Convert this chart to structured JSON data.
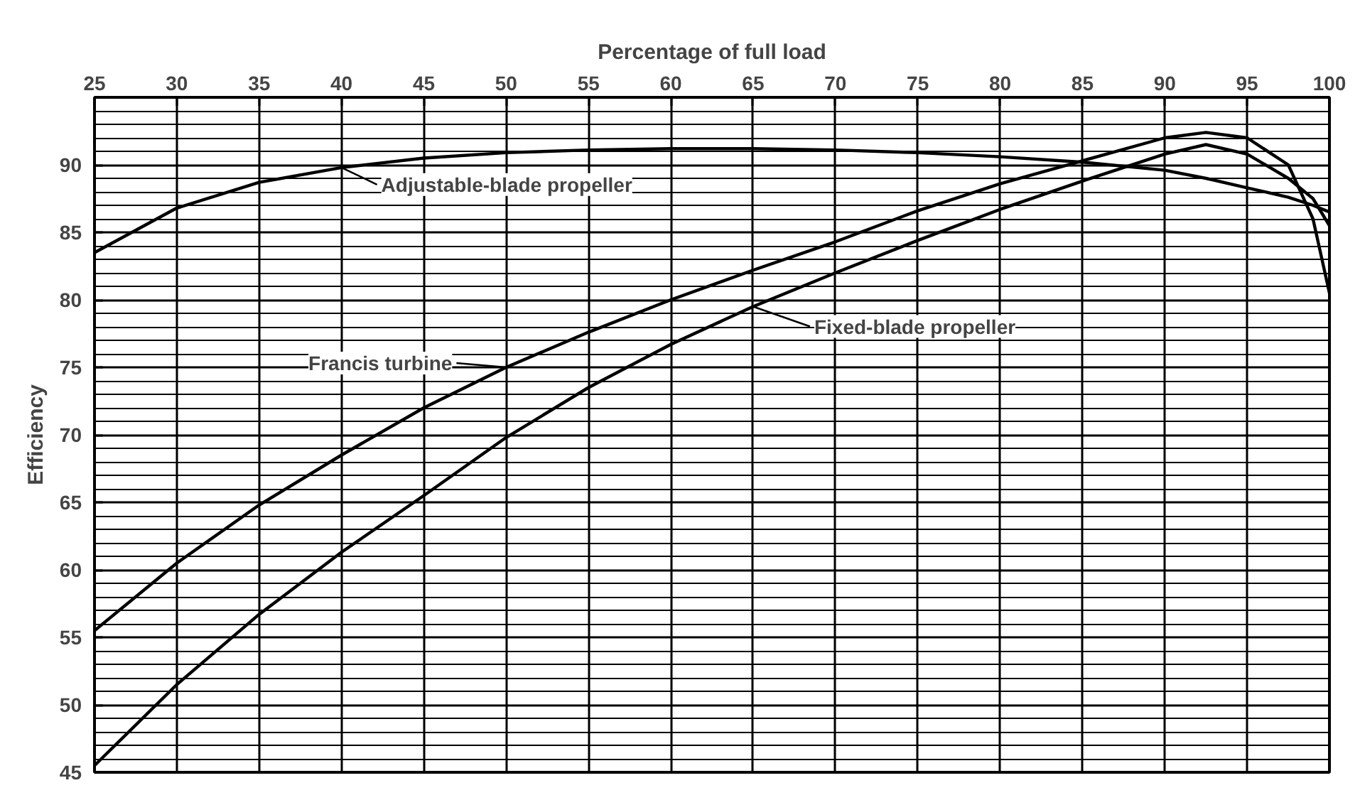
{
  "chart_data": {
    "type": "line",
    "xlabel": "Percentage of full load",
    "ylabel": "Efficiency",
    "xlim": [
      25,
      100
    ],
    "ylim": [
      45,
      95
    ],
    "xticks": [
      25,
      30,
      35,
      40,
      45,
      50,
      55,
      60,
      65,
      70,
      75,
      80,
      85,
      90,
      95,
      100
    ],
    "yticks": [
      45,
      50,
      55,
      60,
      65,
      70,
      75,
      80,
      85,
      90
    ],
    "grid": true,
    "line_style": "solid",
    "x": [
      25,
      30,
      35,
      40,
      45,
      50,
      55,
      60,
      65,
      70,
      75,
      80,
      85,
      90,
      92.5,
      95,
      97.5,
      99,
      100
    ],
    "series": [
      {
        "color": "#000000",
        "values": [
          83.5,
          86.8,
          88.7,
          89.8,
          90.5,
          90.9,
          91.1,
          91.2,
          91.2,
          91.1,
          90.9,
          90.6,
          90.2,
          89.6,
          89.0,
          88.3,
          87.6,
          87.0,
          86.5
        ]
      },
      {
        "color": "#000000",
        "values": [
          55.5,
          60.5,
          64.8,
          68.5,
          72,
          75,
          77.6,
          80,
          82.2,
          84.3,
          86.6,
          88.6,
          90.3,
          92.0,
          92.4,
          92.0,
          90.0,
          86.0,
          80.5
        ]
      },
      {
        "color": "#000000",
        "values": [
          45.5,
          51.5,
          56.7,
          61.3,
          65.5,
          69.8,
          73.5,
          76.7,
          79.5,
          82,
          84.4,
          86.7,
          88.8,
          90.8,
          91.5,
          90.8,
          89.0,
          87.5,
          85.5
        ]
      }
    ],
    "annotations": [
      {
        "text": "Adjustable-blade propeller",
        "x": 40,
        "y": 89.8
      },
      {
        "text": "Francis turbine",
        "x": 50,
        "y": 75
      },
      {
        "text": "Fixed-blade propeller",
        "x": 65,
        "y": 79.5
      }
    ]
  }
}
